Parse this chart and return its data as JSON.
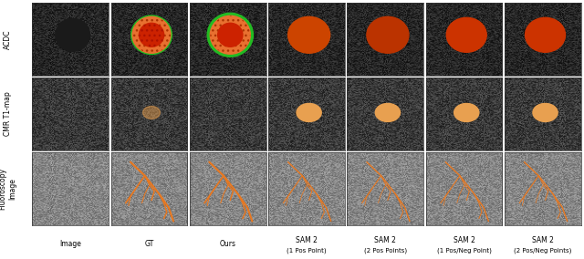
{
  "figure_width": 6.4,
  "figure_height": 2.84,
  "dpi": 100,
  "n_cols": 7,
  "n_rows": 3,
  "background_color": "#ffffff",
  "row_labels": [
    "ACDC",
    "CMR T1-map",
    "Fluoroscopy\nImage"
  ],
  "col_labels": [
    "Image",
    "GT",
    "Ours",
    "SAM 2\n(1 Pos Point)",
    "SAM 2\n(2 Pos Points)",
    "SAM 2\n(1 Pos/Neg Point)",
    "SAM 2\n(2 Pos/Neg Points)"
  ],
  "label_fontsize": 5.5,
  "col_label_fontsize": 5.5,
  "acdc_colors": {
    "green_outline": "#22bb22",
    "orange_texture": "#e87030",
    "red_fill": "#cc2200",
    "plain_orange": "#cc4400"
  },
  "cmr_colors": {
    "outline": "#cccccc",
    "fill": "#e8a050"
  },
  "fluoro_colors": {
    "line": "#e87820"
  }
}
